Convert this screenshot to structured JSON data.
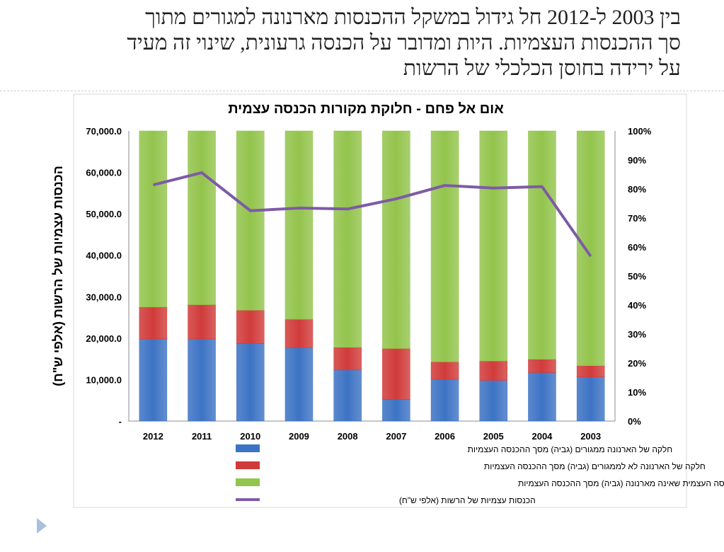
{
  "slide": {
    "title_lines": [
      "בין 2003 ל-2012 חל גידול במשקל ההכנסות מארנונה למגורים מתוך",
      "סך ההכנסות העצמיות. היות ומדובר על הכנסה גרעונית, שינוי זה מעיד",
      "על ירידה בחוסן הכלכלי של הרשות"
    ]
  },
  "colors": {
    "blue": "#3d73c4",
    "red": "#d03b3a",
    "green": "#93c44c",
    "purple": "#7d5ba6"
  },
  "chart_data": {
    "type": "bar",
    "stacked": true,
    "title": "אום אל פחם - חלוקת מקורות הכנסה עצמית",
    "ylabel": "הכנסות עצמיות של הרשות (אלפי ש\"ח)",
    "categories": [
      "2012",
      "2011",
      "2010",
      "2009",
      "2008",
      "2007",
      "2006",
      "2005",
      "2004",
      "2003"
    ],
    "y_ticks": [
      "70,000.0",
      "60,000.0",
      "50,000.0",
      "40,000.0",
      "30,000.0",
      "20,000.0",
      "10,000.0",
      "-"
    ],
    "y2_ticks": [
      "100%",
      "90%",
      "80%",
      "70%",
      "60%",
      "50%",
      "40%",
      "30%",
      "20%",
      "10%",
      "0%"
    ],
    "ylim": [
      0,
      70000
    ],
    "y2lim": [
      0,
      100
    ],
    "series": [
      {
        "name": "חלקה של הארנונה ממגורים (גביה) מסך ההכנסה העצמיות",
        "color": "#3d73c4",
        "axis": "left-percent",
        "values": [
          28.3,
          28.3,
          26.7,
          25.3,
          17.6,
          7.4,
          14.4,
          14.0,
          16.7,
          15.2
        ]
      },
      {
        "name": "חלקה של הארנונה לא לממגורים (גביה) מסך ההכנסה העצמיות",
        "color": "#d03b3a",
        "axis": "left-percent",
        "values": [
          11.0,
          11.8,
          11.5,
          9.8,
          7.8,
          17.6,
          6.0,
          6.7,
          4.6,
          3.9
        ]
      },
      {
        "name": "חלקה של הכנסה העצמית שאינה מארנונה (גביה) מסך ההכנסה העצמיות",
        "color": "#93c44c",
        "axis": "left-percent",
        "values": [
          60.7,
          59.9,
          61.8,
          64.9,
          74.6,
          75.0,
          79.6,
          79.3,
          78.7,
          80.9
        ]
      },
      {
        "name": "הכנסות עצמיות של הרשות  (אלפי ש\"ח)",
        "color": "#7d5ba6",
        "type": "line",
        "values": [
          81.4,
          85.6,
          72.5,
          73.4,
          73.1,
          76.6,
          81.2,
          80.3,
          80.8,
          56.8
        ]
      }
    ]
  }
}
